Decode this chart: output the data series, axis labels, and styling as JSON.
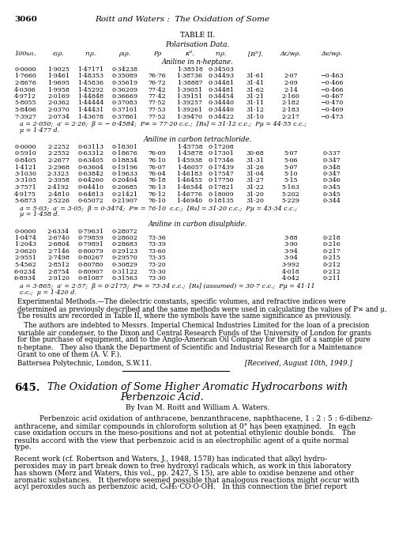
{
  "page_number": "3060",
  "header_title": "Roitt and Waters :  The Oxidation of Some",
  "table_title": "TABLE II.",
  "table_subtitle": "Polarisation Data.",
  "col_headers": [
    "100ω₁.",
    "ε₁ρ.",
    "r₁ρ.",
    "ρ₁ρ.",
    "Pρ",
    "κᴰ.",
    "r₁ρ.",
    "[Rᴰ].",
    "Δε/wρ.",
    "Δv/wρ."
  ],
  "section1_title": "Aniline in n-heptane.",
  "section1_data": [
    [
      "0·0000",
      "1·9025",
      "1·47171",
      "0·34238",
      "",
      "1·38518",
      "0·34503",
      "",
      "",
      ""
    ],
    [
      "1·7660",
      "1·9461",
      "1·48353",
      "0·35089",
      "76·76",
      "1·38736",
      "0·34493",
      "31·61",
      "2·07",
      "−0·463"
    ],
    [
      "2·8676",
      "1·9695",
      "1·45836",
      "0·35619",
      "76·72",
      "1·38887",
      "0·34481",
      "31·41",
      "2·09",
      "−0·466"
    ],
    [
      "4·0306",
      "1·9958",
      "1·45292",
      "0·36209",
      "77·42",
      "1·39051",
      "0·34481",
      "31·62",
      "2·14",
      "−0·466"
    ],
    [
      "4·9712",
      "2·0169",
      "1·44848",
      "0·36669",
      "77·42",
      "1·39151",
      "0·34454",
      "31·21",
      "2·160",
      "−0·467"
    ],
    [
      "5·8055",
      "2·0362",
      "1·44444",
      "0·37083",
      "77·52",
      "1·39257",
      "0·34440",
      "31·11",
      "2·182",
      "−0·470"
    ],
    [
      "5·8406",
      "2·0370",
      "1·44431",
      "0·37101",
      "77·53",
      "1·39261",
      "0·34440",
      "31·12",
      "2·183",
      "−0·469"
    ],
    [
      "7·3927",
      "2·0734",
      "1·43678",
      "0·37861",
      "77·52",
      "1·39470",
      "0·34422",
      "31·10",
      "2·217",
      "−0·473"
    ]
  ],
  "section1_footer1": "a = 2·050;  a′ = 2·26;  β = − 0·4584;  P∞ = 77·20 c.c.;  [R₄] = 31·12 c.c.;  Pμ = 44·55 c.c.;",
  "section1_footer2": "μ = 1·477 d.",
  "section2_title": "Aniline in carbon tetrachloride.",
  "section2_data": [
    [
      "0·0000",
      "2·2252",
      "0·63113",
      "0·18301",
      "",
      "1·45758",
      "0·17208",
      "",
      "",
      ""
    ],
    [
      "0·5910",
      "2·2552",
      "0·63312",
      "0·18676",
      "76·09",
      "1·45878",
      "0·17301",
      "30·68",
      "5·07",
      "0·337"
    ],
    [
      "0·8405",
      "2·2677",
      "0·63405",
      "0·18834",
      "76·10",
      "1·45938",
      "0·17346",
      "31·31",
      "5·06",
      "0·347"
    ],
    [
      "1·4121",
      "2·2968",
      "0·63604",
      "0·19196",
      "76·07",
      "1·46057",
      "0·17439",
      "31·26",
      "5·07",
      "0·348"
    ],
    [
      "3·1030",
      "2·3323",
      "0·63842",
      "0·19633",
      "76·04",
      "1·46183",
      "0·17547",
      "31·04",
      "5·10",
      "0·347"
    ],
    [
      "3·3105",
      "2·3958",
      "0·64260",
      "0·20404",
      "76·18",
      "1·46455",
      "0·17750",
      "31·27",
      "5·15",
      "0·346"
    ],
    [
      "3·7571",
      "2·4192",
      "0·64410",
      "0·20685",
      "76·13",
      "1·46544",
      "0·17821",
      "31·22",
      "5·163",
      "0·345"
    ],
    [
      "4·9175",
      "2·4810",
      "0·64813",
      "0·21421",
      "76·12",
      "1·46776",
      "0·18009",
      "31·20",
      "5·202",
      "0·345"
    ],
    [
      "5·6873",
      "2·5226",
      "0·65072",
      "0·21907",
      "76·10",
      "1·46940",
      "0·18135",
      "31·20",
      "5·229",
      "0·344"
    ]
  ],
  "section2_footer1": "a = 5·03;  a′ = 3·05;  β = 0·3474;  P∞ = 76·10  c.c.;  [R₄] = 31·20 c.c.;  Pμ = 43·34 c.c.;",
  "section2_footer2": "μ = 1·458 d.",
  "section3_title": "Aniline in carbon disulphide.",
  "section3_data": [
    [
      "0·0000",
      "2·6334",
      "0·79631",
      "0·28072",
      "",
      "",
      "",
      "",
      "",
      ""
    ],
    [
      "1·0474",
      "2·6740",
      "0·79859",
      "0·28602",
      "73·36",
      "",
      "",
      "",
      "3·88",
      "0·218"
    ],
    [
      "1·2043",
      "2·6804",
      "0·79891",
      "0·28683",
      "73·39",
      "",
      "",
      "",
      "3·90",
      "0·216"
    ],
    [
      "2·0620",
      "2·7146",
      "0·80079",
      "0·29123",
      "73·60",
      "",
      "",
      "",
      "3·94",
      "0·217"
    ],
    [
      "2·9551",
      "2·7498",
      "0·80267",
      "0·29570",
      "73·35",
      "",
      "",
      "",
      "3·94",
      "0·215"
    ],
    [
      "5·4562",
      "2·8512",
      "0·80780",
      "0·30829",
      "73·20",
      "",
      "",
      "",
      "3·992",
      "0·212"
    ],
    [
      "6·0234",
      "2·8754",
      "0·80907",
      "0·31122",
      "73·30",
      "",
      "",
      "",
      "4·018",
      "0·212"
    ],
    [
      "6·8934",
      "2·9120",
      "0·81087",
      "0·31563",
      "73·30",
      "",
      "",
      "",
      "4·042",
      "0·211"
    ]
  ],
  "section3_footer1": "a = 3·865;  a′ = 2·57;  β = 0·2175;  P∞ = 73·34 c.c.;  [R₄] (assumed) = 30·7 c.c.;  Pμ = 41·11",
  "section3_footer2": "c.c.;  μ = 1·420 d.",
  "exp_line1": "Experimental Methods.—The dielectric constants, specific volumes, and refractive indices were",
  "exp_line2": "determined as previously described and the same methods were used in calculating the values of P∞ and μ.",
  "exp_line3": "The results are recorded in Table II, where the symbols have the same significance as previously.",
  "ack_line1": "   The authors are indebted to Messrs. Imperial Chemical Industries Limited for the loan of a precision",
  "ack_line2": "variable air condenser, to the Dixon and Central Research Funds of the University of London for grants",
  "ack_line3": "for the purchase of equipment, and to the Anglo-American Oil Company for the gift of a sample of pure",
  "ack_line4": "n-heptane.   They also thank the Department of Scientific and Industrial Research for a Maintenance",
  "ack_line5": "Grant to one of them (A. V. F.).",
  "address": "Battersea Polytechnic, London, S.W.11.",
  "received": "[Received, August 10th, 1949.]",
  "article_number": "645.",
  "article_title_line1": "The Oxidation of Some Higher Aromatic Hydrocarbons with",
  "article_title_line2": "Perbenzoic Acid.",
  "article_authors": "By Ivan M. Roitt and William A. Waters.",
  "abs_line1": "Perbenzoic acid oxidation of anthracene, benzanthracene, naphthacene, 1 : 2 : 5 : 6-dibenz-",
  "abs_line2": "anthracene, and similar compounds in chloroform solution at 0° has been examined.   In each",
  "abs_line3": "case oxidation occurs in the meso-positions and not at potential ethylenic double bonds.   The",
  "abs_line4": "results accord with the view that perbenzoic acid is an electrophilic agent of a quite normal",
  "abs_line5": "type.",
  "rec_line1": "Recent work (cf. Robertson and Waters, J., 1948, 1578) has indicated that alkyl hydro-",
  "rec_line2": "peroxides may in part break down to free hydroxyl radicals which, as work in this laboratory",
  "rec_line3": "has shown (Merz and Waters, this vol., pp. 2427, S 15), are able to oxidise benzene and other",
  "rec_line4": "aromatic substances.   It therefore seemed possible that analogous reactions might occur with",
  "rec_line5": "acyl peroxides such as perbenzoic acid, C₆H₅·CO·O·OH.   In this connection the brief report"
}
